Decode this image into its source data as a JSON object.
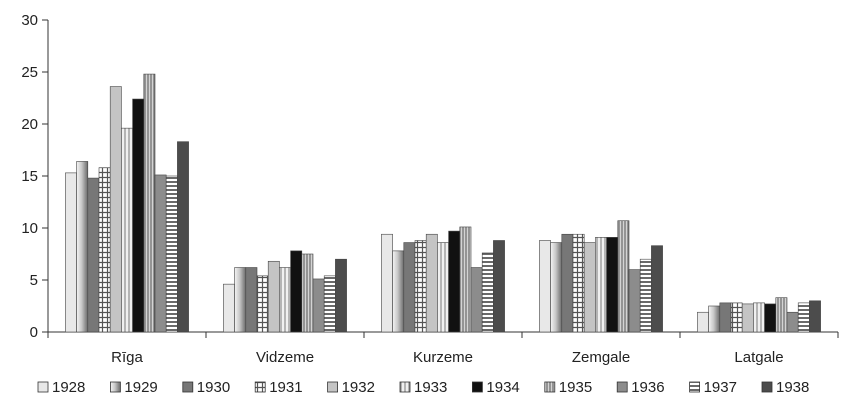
{
  "chart_data": {
    "type": "bar",
    "categories": [
      "Rīga",
      "Vidzeme",
      "Kurzeme",
      "Zemgale",
      "Latgale"
    ],
    "ylim": [
      0,
      30
    ],
    "yticks": [
      0,
      5,
      10,
      15,
      20,
      25,
      30
    ],
    "grid": false,
    "legend_position": "bottom",
    "series": [
      {
        "name": "1928",
        "values": [
          15.3,
          4.6,
          9.4,
          8.8,
          1.9
        ],
        "color": "#e8e8e8",
        "pattern": "solid"
      },
      {
        "name": "1929",
        "values": [
          16.4,
          6.2,
          7.8,
          8.6,
          2.5
        ],
        "color": "#a8a8a8",
        "pattern": "gradient"
      },
      {
        "name": "1930",
        "values": [
          14.8,
          6.2,
          8.6,
          9.4,
          2.8
        ],
        "color": "#777777",
        "pattern": "solid"
      },
      {
        "name": "1931",
        "values": [
          15.8,
          5.4,
          8.8,
          9.4,
          2.8
        ],
        "color": "#b0b0b0",
        "pattern": "grid"
      },
      {
        "name": "1932",
        "values": [
          23.6,
          6.8,
          9.4,
          8.6,
          2.7
        ],
        "color": "#c4c4c4",
        "pattern": "solid"
      },
      {
        "name": "1933",
        "values": [
          19.6,
          6.2,
          8.6,
          9.1,
          2.8
        ],
        "color": "#e6e6e6",
        "pattern": "vlines"
      },
      {
        "name": "1934",
        "values": [
          22.4,
          7.8,
          9.7,
          9.1,
          2.7
        ],
        "color": "#111111",
        "pattern": "solid"
      },
      {
        "name": "1935",
        "values": [
          24.8,
          7.5,
          10.1,
          10.7,
          3.3
        ],
        "color": "#9a9a9a",
        "pattern": "vlines-dense"
      },
      {
        "name": "1936",
        "values": [
          15.1,
          5.1,
          6.2,
          6.0,
          1.9
        ],
        "color": "#8c8c8c",
        "pattern": "solid"
      },
      {
        "name": "1937",
        "values": [
          15.0,
          5.4,
          7.6,
          7.0,
          2.8
        ],
        "color": "#d8d8d8",
        "pattern": "hlines"
      },
      {
        "name": "1938",
        "values": [
          18.3,
          7.0,
          8.8,
          8.3,
          3.0
        ],
        "color": "#4c4c4c",
        "pattern": "solid"
      }
    ]
  }
}
